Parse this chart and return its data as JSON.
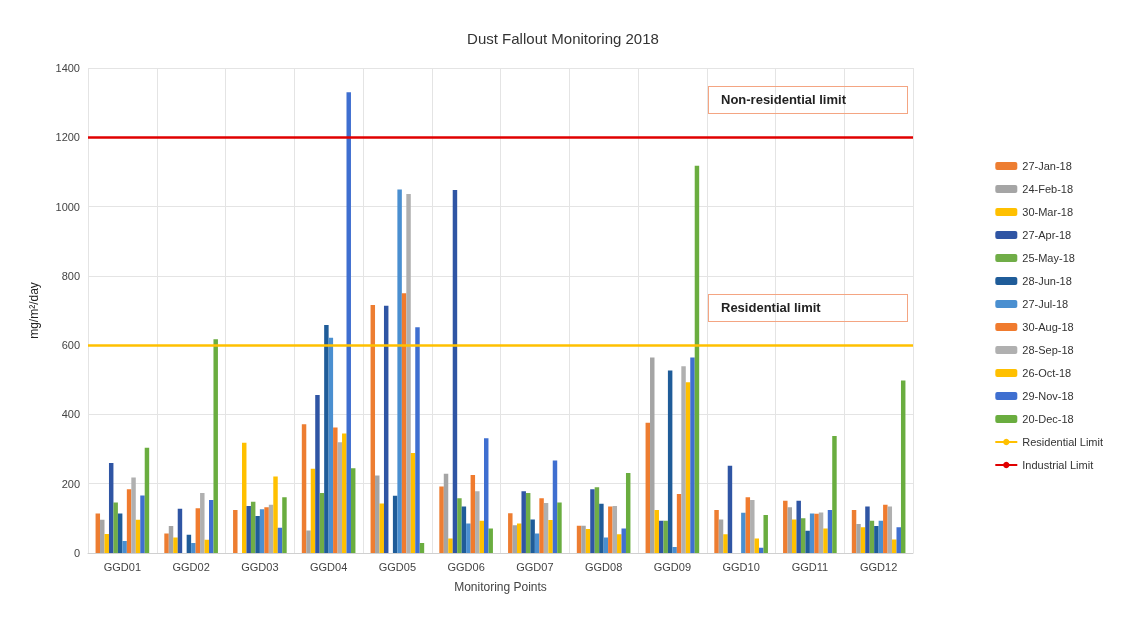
{
  "chart_data": {
    "type": "bar",
    "title": "Dust Fallout Monitoring 2018",
    "xlabel": "Monitoring Points",
    "ylabel": "mg/m²/day",
    "categories": [
      "GGD01",
      "GGD02",
      "GGD03",
      "GGD04",
      "GGD05",
      "GGD06",
      "GGD07",
      "GGD08",
      "GGD09",
      "GGD10",
      "GGD11",
      "GGD12"
    ],
    "series": [
      {
        "name": "27-Jan-18",
        "color": "#ed7d31",
        "values": [
          114,
          56,
          124,
          372,
          716,
          192,
          115,
          79,
          376,
          124,
          151,
          124
        ]
      },
      {
        "name": "24-Feb-18",
        "color": "#a5a5a5",
        "values": [
          96,
          78,
          null,
          65,
          224,
          229,
          80,
          79,
          564,
          97,
          132,
          84
        ]
      },
      {
        "name": "30-Mar-18",
        "color": "#ffc000",
        "values": [
          55,
          45,
          318,
          243,
          143,
          42,
          85,
          69,
          124,
          54,
          97,
          74
        ]
      },
      {
        "name": "27-Apr-18",
        "color": "#2f55a4",
        "values": [
          260,
          128,
          136,
          456,
          714,
          1048,
          178,
          184,
          93,
          252,
          151,
          134
        ]
      },
      {
        "name": "25-May-18",
        "color": "#70ad47",
        "values": [
          146,
          null,
          148,
          173,
          null,
          158,
          173,
          190,
          93,
          null,
          100,
          93
        ]
      },
      {
        "name": "28-Jun-18",
        "color": "#1f5c99",
        "values": [
          114,
          53,
          107,
          658,
          165,
          134,
          97,
          142,
          527,
          null,
          64,
          78
        ]
      },
      {
        "name": "27-Jul-18",
        "color": "#4a8fd0",
        "values": [
          35,
          29,
          126,
          621,
          1049,
          85,
          56,
          45,
          17,
          116,
          114,
          93
        ]
      },
      {
        "name": "30-Aug-18",
        "color": "#f07b2e",
        "values": [
          184,
          129,
          132,
          362,
          750,
          225,
          158,
          134,
          170,
          161,
          113,
          139
        ]
      },
      {
        "name": "28-Sep-18",
        "color": "#b0b0b0",
        "values": [
          218,
          173,
          139,
          320,
          1036,
          178,
          144,
          136,
          539,
          153,
          117,
          134
        ]
      },
      {
        "name": "26-Oct-18",
        "color": "#ffc000",
        "values": [
          96,
          38,
          221,
          345,
          289,
          93,
          95,
          54,
          493,
          42,
          71,
          39
        ]
      },
      {
        "name": "29-Nov-18",
        "color": "#3f6fd0",
        "values": [
          166,
          153,
          73,
          1330,
          652,
          331,
          267,
          71,
          564,
          15,
          124,
          74
        ]
      },
      {
        "name": "20-Dec-18",
        "color": "#6aad3f",
        "values": [
          304,
          617,
          161,
          245,
          29,
          71,
          146,
          231,
          1118,
          110,
          338,
          498
        ]
      }
    ],
    "ref_lines": [
      {
        "axis": "y",
        "value": 600,
        "label": "Residential Limit",
        "color": "#ffc000"
      },
      {
        "axis": "y",
        "value": 1200,
        "label": "Industrial Limit",
        "color": "#e00000"
      }
    ],
    "annotations": [
      {
        "text": "Non-residential limit",
        "y": 1200
      },
      {
        "text": "Residential limit",
        "y": 600
      }
    ],
    "ylim": [
      0,
      1400
    ],
    "yticks": [
      0,
      200,
      400,
      600,
      800,
      1000,
      1200,
      1400
    ],
    "grid": true,
    "legend": "right"
  }
}
